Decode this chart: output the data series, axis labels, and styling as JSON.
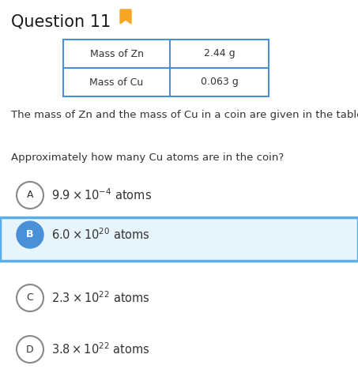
{
  "title": "Question 11",
  "title_color": "#1a1a1a",
  "bookmark_color": "#F5A623",
  "table": {
    "rows": [
      [
        "Mass of Zn",
        "2.44 g"
      ],
      [
        "Mass of Cu",
        "0.063 g"
      ]
    ],
    "border_color": "#4A90D9"
  },
  "description": "The mass of Zn and the mass of Cu in a coin are given in the table.",
  "question": "Approximately how many Cu atoms are in the coin?",
  "options": [
    {
      "label": "A",
      "text": "$9.9 \\times 10^{-4}$ atoms",
      "selected": false
    },
    {
      "label": "B",
      "text": "$6.0 \\times 10^{20}$ atoms",
      "selected": true
    },
    {
      "label": "C",
      "text": "$2.3 \\times 10^{22}$ atoms",
      "selected": false
    },
    {
      "label": "D",
      "text": "$3.8 \\times 10^{22}$ atoms",
      "selected": false
    }
  ],
  "selected_border_color": "#5aaee8",
  "selected_bg": "#e8f4fb",
  "selected_circle_color": "#4A90D9",
  "bg_color": "#ffffff",
  "text_color": "#333333",
  "circle_edge_color": "#888888"
}
